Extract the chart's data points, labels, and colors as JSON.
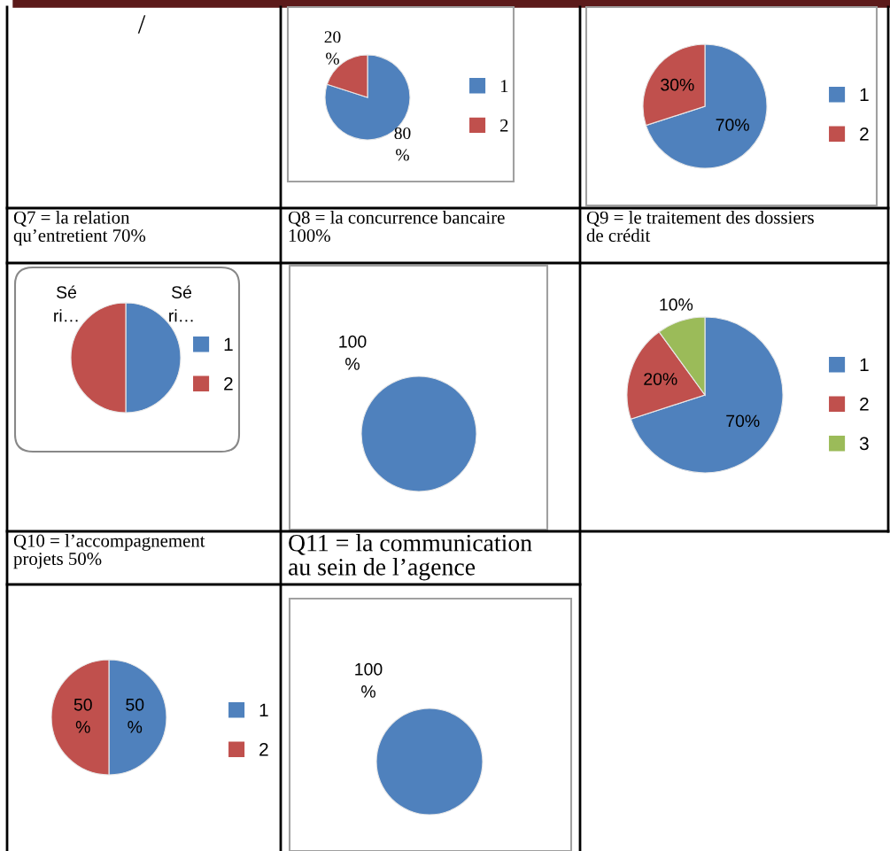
{
  "chart_data": [
    {
      "type": "other",
      "annotations": [
        "/"
      ]
    },
    {
      "type": "pie",
      "categories": [
        "1",
        "2"
      ],
      "values": [
        80,
        20
      ],
      "colors": [
        "#4f81bd",
        "#c0504d"
      ],
      "value_labels": [
        "80 %",
        "20 %"
      ],
      "legend": "right"
    },
    {
      "type": "pie",
      "categories": [
        "1",
        "2"
      ],
      "values": [
        70,
        30
      ],
      "colors": [
        "#4f81bd",
        "#c0504d"
      ],
      "value_labels": [
        "70%",
        "30%"
      ],
      "legend": "right"
    },
    {
      "type": "pie",
      "title": "Q7 = la relation\nqu’entretient 70%",
      "categories": [
        "1",
        "2"
      ],
      "values": [
        50,
        50
      ],
      "colors": [
        "#4f81bd",
        "#c0504d"
      ],
      "legend": "right",
      "annotations": [
        "Sé\nri…",
        "Sé\nri…"
      ]
    },
    {
      "type": "pie",
      "title": "Q8 = la concurrence bancaire\n100%",
      "categories": [
        null
      ],
      "values": [
        100
      ],
      "colors": [
        "#4f81bd"
      ],
      "value_labels": [
        "100 %"
      ]
    },
    {
      "type": "pie",
      "title": "Q9 = le traitement des dossiers\nde crédit",
      "categories": [
        "1",
        "2",
        "3"
      ],
      "values": [
        70,
        20,
        10
      ],
      "colors": [
        "#4f81bd",
        "#c0504d",
        "#9bbb59"
      ],
      "value_labels": [
        "70%",
        "20%",
        "10%"
      ],
      "legend": "right"
    },
    {
      "type": "pie",
      "title": "Q10 = l’accompagnement\nprojets 50%",
      "categories": [
        "1",
        "2"
      ],
      "values": [
        50,
        50
      ],
      "colors": [
        "#4f81bd",
        "#c0504d"
      ],
      "value_labels": [
        "50 %",
        "50 %"
      ],
      "legend": "right"
    },
    {
      "type": "pie",
      "title": "Q11 = la communication\nau sein de l’agence",
      "categories": [
        null
      ],
      "values": [
        100
      ],
      "colors": [
        "#4f81bd"
      ],
      "value_labels": [
        "100 %"
      ]
    }
  ]
}
